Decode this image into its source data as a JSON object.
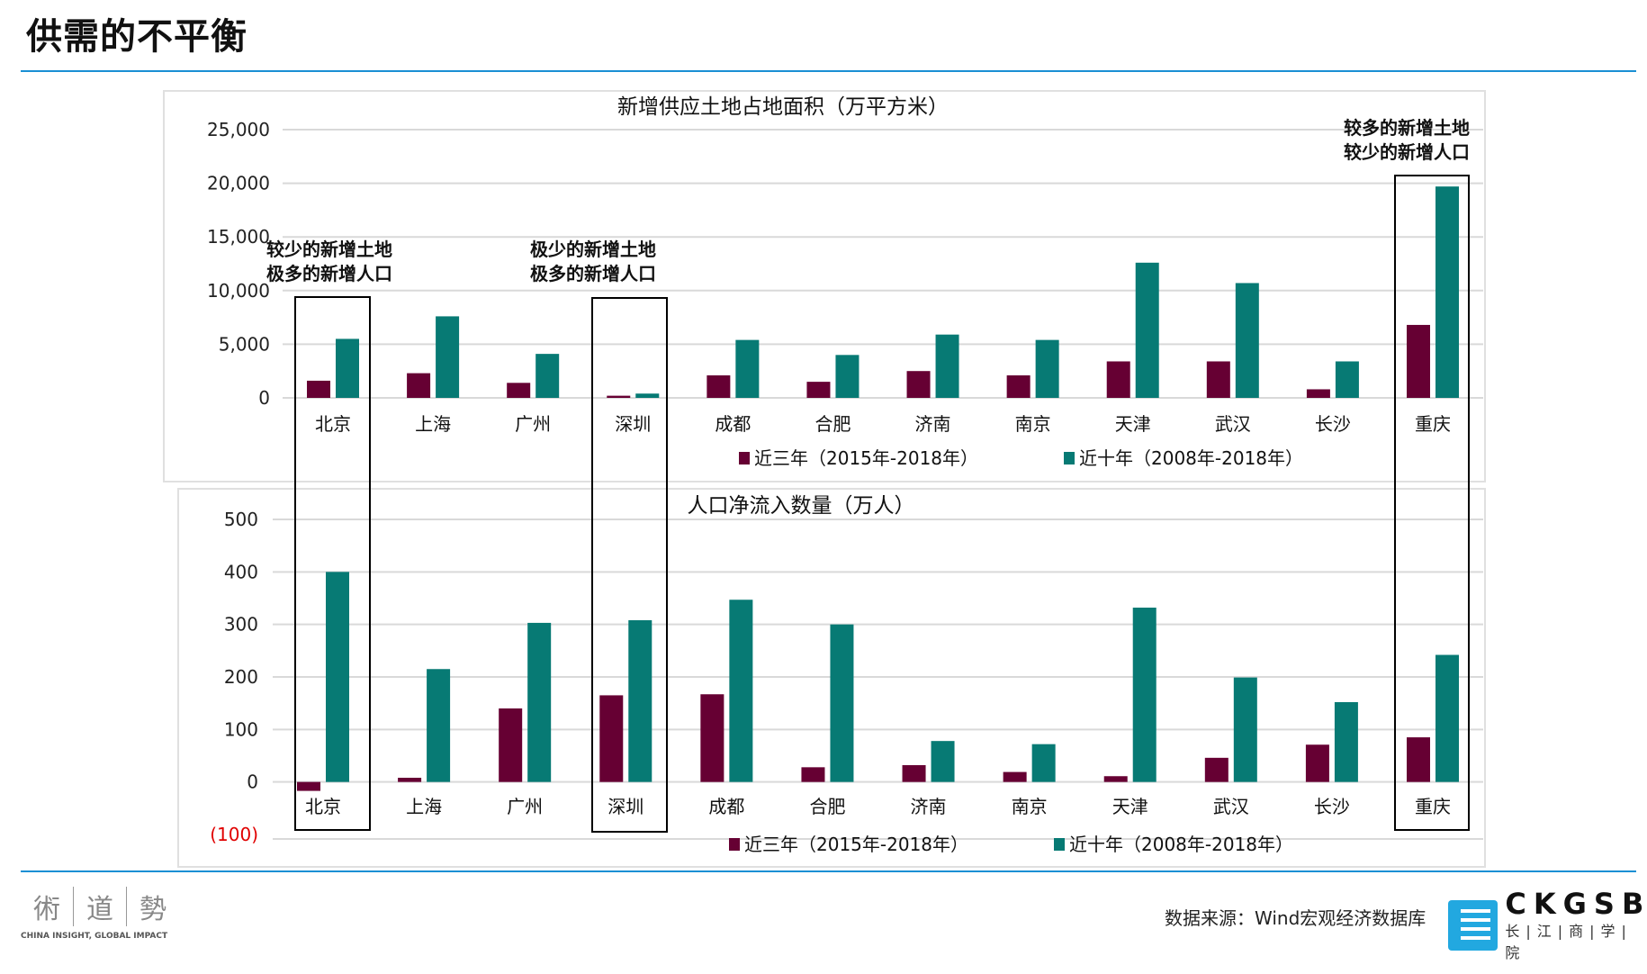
{
  "page_title": "供需的不平衡",
  "source": "数据来源：Wind宏观经济数据库",
  "left_logo": {
    "chars": [
      "術",
      "道",
      "勢"
    ],
    "tagline": "CHINA INSIGHT, GLOBAL IMPACT"
  },
  "right_logo": {
    "word": "CKGSB",
    "cn": "长|江|商|学|院"
  },
  "colors": {
    "recent3": "#660033",
    "recent10": "#077a74",
    "accent": "#1a8fd4",
    "negative_tick": "#e00000"
  },
  "annotations": {
    "beijing": [
      "较少的新增土地",
      "极多的新增人口"
    ],
    "shenzhen": [
      "极少的新增土地",
      "极多的新增人口"
    ],
    "chongqing": [
      "较多的新增土地",
      "较少的新增人口"
    ]
  },
  "chart_data": [
    {
      "type": "bar",
      "title": "新增供应土地占地面积（万平方米）",
      "categories": [
        "北京",
        "上海",
        "广州",
        "深圳",
        "成都",
        "合肥",
        "济南",
        "南京",
        "天津",
        "武汉",
        "长沙",
        "重庆"
      ],
      "series": [
        {
          "name": "近三年（2015年-2018年）",
          "values": [
            1600,
            2300,
            1400,
            200,
            2100,
            1500,
            2500,
            2100,
            3400,
            3400,
            800,
            6800
          ]
        },
        {
          "name": "近十年（2008年-2018年）",
          "values": [
            5500,
            7600,
            4100,
            400,
            5400,
            4000,
            5900,
            5400,
            12600,
            10700,
            3400,
            19700
          ]
        }
      ],
      "ylim": [
        0,
        25000
      ],
      "yticks": [
        0,
        5000,
        10000,
        15000,
        20000,
        25000
      ],
      "ytick_labels": [
        "0",
        "5,000",
        "10,000",
        "15,000",
        "20,000",
        "25,000"
      ],
      "grid": true,
      "legend": "bottom"
    },
    {
      "type": "bar",
      "title": "人口净流入数量（万人）",
      "categories": [
        "北京",
        "上海",
        "广州",
        "深圳",
        "成都",
        "合肥",
        "济南",
        "南京",
        "天津",
        "武汉",
        "长沙",
        "重庆"
      ],
      "series": [
        {
          "name": "近三年（2015年-2018年）",
          "values": [
            -17,
            8,
            140,
            165,
            167,
            28,
            32,
            19,
            11,
            46,
            71,
            85
          ]
        },
        {
          "name": "近十年（2008年-2018年）",
          "values": [
            400,
            215,
            303,
            308,
            347,
            300,
            78,
            72,
            332,
            199,
            152,
            242
          ]
        }
      ],
      "ylim": [
        -100,
        500
      ],
      "yticks": [
        -100,
        0,
        100,
        200,
        300,
        400,
        500
      ],
      "ytick_labels": [
        "(100)",
        "0",
        "100",
        "200",
        "300",
        "400",
        "500"
      ],
      "grid": true,
      "legend": "bottom"
    }
  ]
}
